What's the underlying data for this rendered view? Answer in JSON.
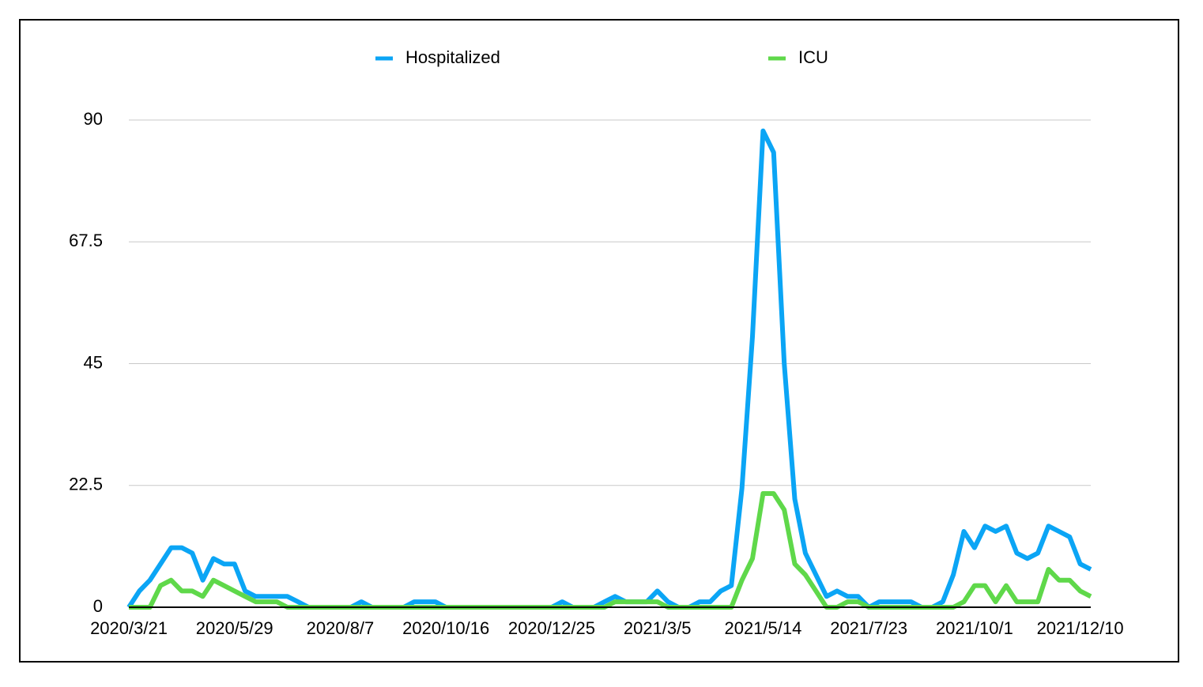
{
  "chart_data": {
    "type": "line",
    "categories": [
      "2020/3/21",
      null,
      null,
      null,
      null,
      null,
      null,
      null,
      null,
      null,
      "2020/5/29",
      null,
      null,
      null,
      null,
      null,
      null,
      null,
      null,
      null,
      "2020/8/7",
      null,
      null,
      null,
      null,
      null,
      null,
      null,
      null,
      null,
      "2020/10/16",
      null,
      null,
      null,
      null,
      null,
      null,
      null,
      null,
      null,
      "2020/12/25",
      null,
      null,
      null,
      null,
      null,
      null,
      null,
      null,
      null,
      "2021/3/5",
      null,
      null,
      null,
      null,
      null,
      null,
      null,
      null,
      null,
      "2021/5/14",
      null,
      null,
      null,
      null,
      null,
      null,
      null,
      null,
      null,
      "2021/7/23",
      null,
      null,
      null,
      null,
      null,
      null,
      null,
      null,
      null,
      "2021/10/1",
      null,
      null,
      null,
      null,
      null,
      null,
      null,
      null,
      null,
      "2021/12/10",
      null
    ],
    "series": [
      {
        "name": "Hospitalized",
        "color": "#0ba5f5",
        "values": [
          0,
          3,
          5,
          8,
          11,
          11,
          10,
          5,
          9,
          8,
          8,
          3,
          2,
          2,
          2,
          2,
          1,
          0,
          0,
          0,
          0,
          0,
          1,
          0,
          0,
          0,
          0,
          1,
          1,
          1,
          0,
          0,
          0,
          0,
          0,
          0,
          0,
          0,
          0,
          0,
          0,
          1,
          0,
          0,
          0,
          1,
          2,
          1,
          1,
          1,
          3,
          1,
          0,
          0,
          1,
          1,
          3,
          4,
          22,
          50,
          88,
          84,
          45,
          20,
          10,
          6,
          2,
          3,
          2,
          2,
          0,
          1,
          1,
          1,
          1,
          0,
          0,
          1,
          6,
          14,
          11,
          15,
          14,
          15,
          10,
          9,
          10,
          15,
          14,
          13,
          8,
          7
        ]
      },
      {
        "name": "ICU",
        "color": "#5fd84a",
        "values": [
          0,
          0,
          0,
          4,
          5,
          3,
          3,
          2,
          5,
          4,
          3,
          2,
          1,
          1,
          1,
          0,
          0,
          0,
          0,
          0,
          0,
          0,
          0,
          0,
          0,
          0,
          0,
          0,
          0,
          0,
          0,
          0,
          0,
          0,
          0,
          0,
          0,
          0,
          0,
          0,
          0,
          0,
          0,
          0,
          0,
          0,
          1,
          1,
          1,
          1,
          1,
          0,
          0,
          0,
          0,
          0,
          0,
          0,
          5,
          9,
          21,
          21,
          18,
          8,
          6,
          3,
          0,
          0,
          1,
          1,
          0,
          0,
          0,
          0,
          0,
          0,
          0,
          0,
          0,
          1,
          4,
          4,
          1,
          4,
          1,
          1,
          1,
          7,
          5,
          5,
          3,
          2
        ]
      }
    ],
    "ylim": [
      0,
      90
    ],
    "yticks": [
      0,
      22.5,
      45,
      67.5,
      90
    ],
    "grid": true,
    "legend": "top"
  }
}
